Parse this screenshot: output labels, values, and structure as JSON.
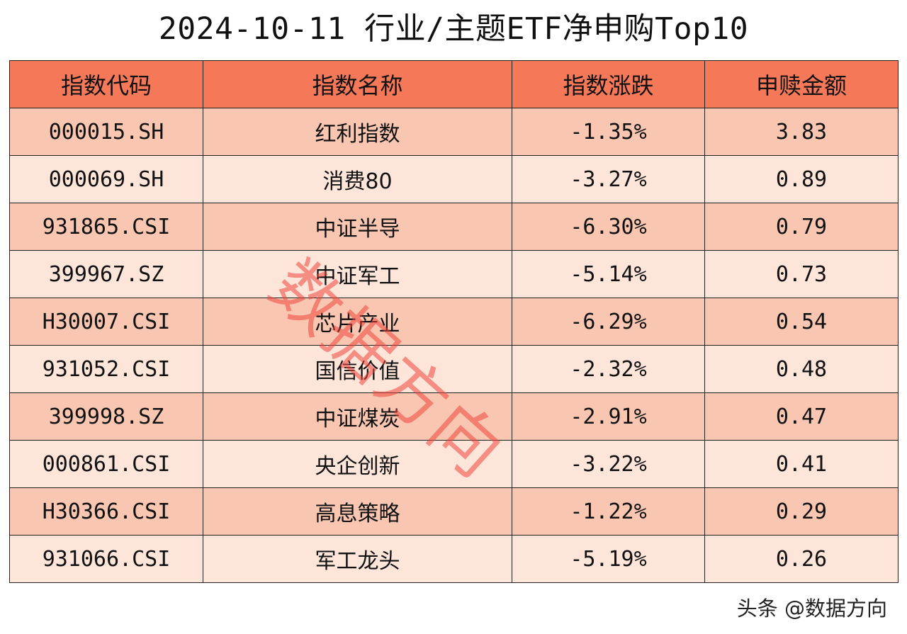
{
  "title": "2024-10-11 行业/主题ETF净申购Top10",
  "watermark": "数据方向",
  "credit": "头条 @数据方向",
  "colors": {
    "header": "#f57859",
    "row_odd": "#f9c6b2",
    "row_even": "#fde5da",
    "watermark": "#ee463c"
  },
  "chart_data": {
    "type": "table",
    "columns": [
      "指数代码",
      "指数名称",
      "指数涨跌",
      "申赎金额"
    ],
    "rows": [
      [
        "000015.SH",
        "红利指数",
        "-1.35%",
        "3.83"
      ],
      [
        "000069.SH",
        "消费80",
        "-3.27%",
        "0.89"
      ],
      [
        "931865.CSI",
        "中证半导",
        "-6.30%",
        "0.79"
      ],
      [
        "399967.SZ",
        "中证军工",
        "-5.14%",
        "0.73"
      ],
      [
        "H30007.CSI",
        "芯片产业",
        "-6.29%",
        "0.54"
      ],
      [
        "931052.CSI",
        "国信价值",
        "-2.32%",
        "0.48"
      ],
      [
        "399998.SZ",
        "中证煤炭",
        "-2.91%",
        "0.47"
      ],
      [
        "000861.CSI",
        "央企创新",
        "-3.22%",
        "0.41"
      ],
      [
        "H30366.CSI",
        "高息策略",
        "-1.22%",
        "0.29"
      ],
      [
        "931066.CSI",
        "军工龙头",
        "-5.19%",
        "0.26"
      ]
    ]
  }
}
